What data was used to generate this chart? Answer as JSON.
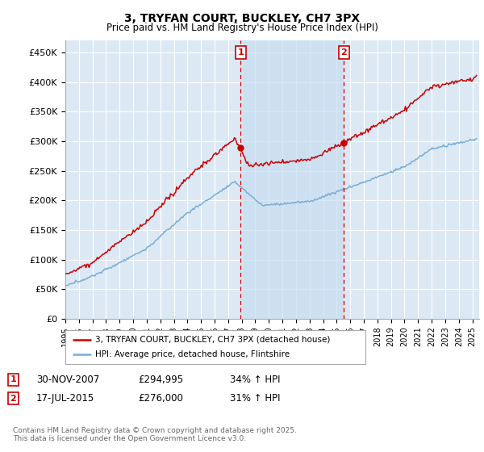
{
  "title": "3, TRYFAN COURT, BUCKLEY, CH7 3PX",
  "subtitle": "Price paid vs. HM Land Registry's House Price Index (HPI)",
  "ylabel_ticks": [
    "£0",
    "£50K",
    "£100K",
    "£150K",
    "£200K",
    "£250K",
    "£300K",
    "£350K",
    "£400K",
    "£450K"
  ],
  "ytick_values": [
    0,
    50000,
    100000,
    150000,
    200000,
    250000,
    300000,
    350000,
    400000,
    450000
  ],
  "ylim": [
    0,
    470000
  ],
  "xlim_start": 1995.0,
  "xlim_end": 2025.5,
  "sale1_date": 2007.92,
  "sale1_price": 294995,
  "sale2_date": 2015.54,
  "sale2_price": 276000,
  "legend_line1": "3, TRYFAN COURT, BUCKLEY, CH7 3PX (detached house)",
  "legend_line2": "HPI: Average price, detached house, Flintshire",
  "footnote": "Contains HM Land Registry data © Crown copyright and database right 2025.\nThis data is licensed under the Open Government Licence v3.0.",
  "hpi_color": "#7aadd4",
  "price_color": "#cc0000",
  "bg_color": "#dce9f5",
  "highlight_color": "#c8ddf0",
  "grid_color": "#ffffff",
  "sale_vline_color": "#cc0000"
}
